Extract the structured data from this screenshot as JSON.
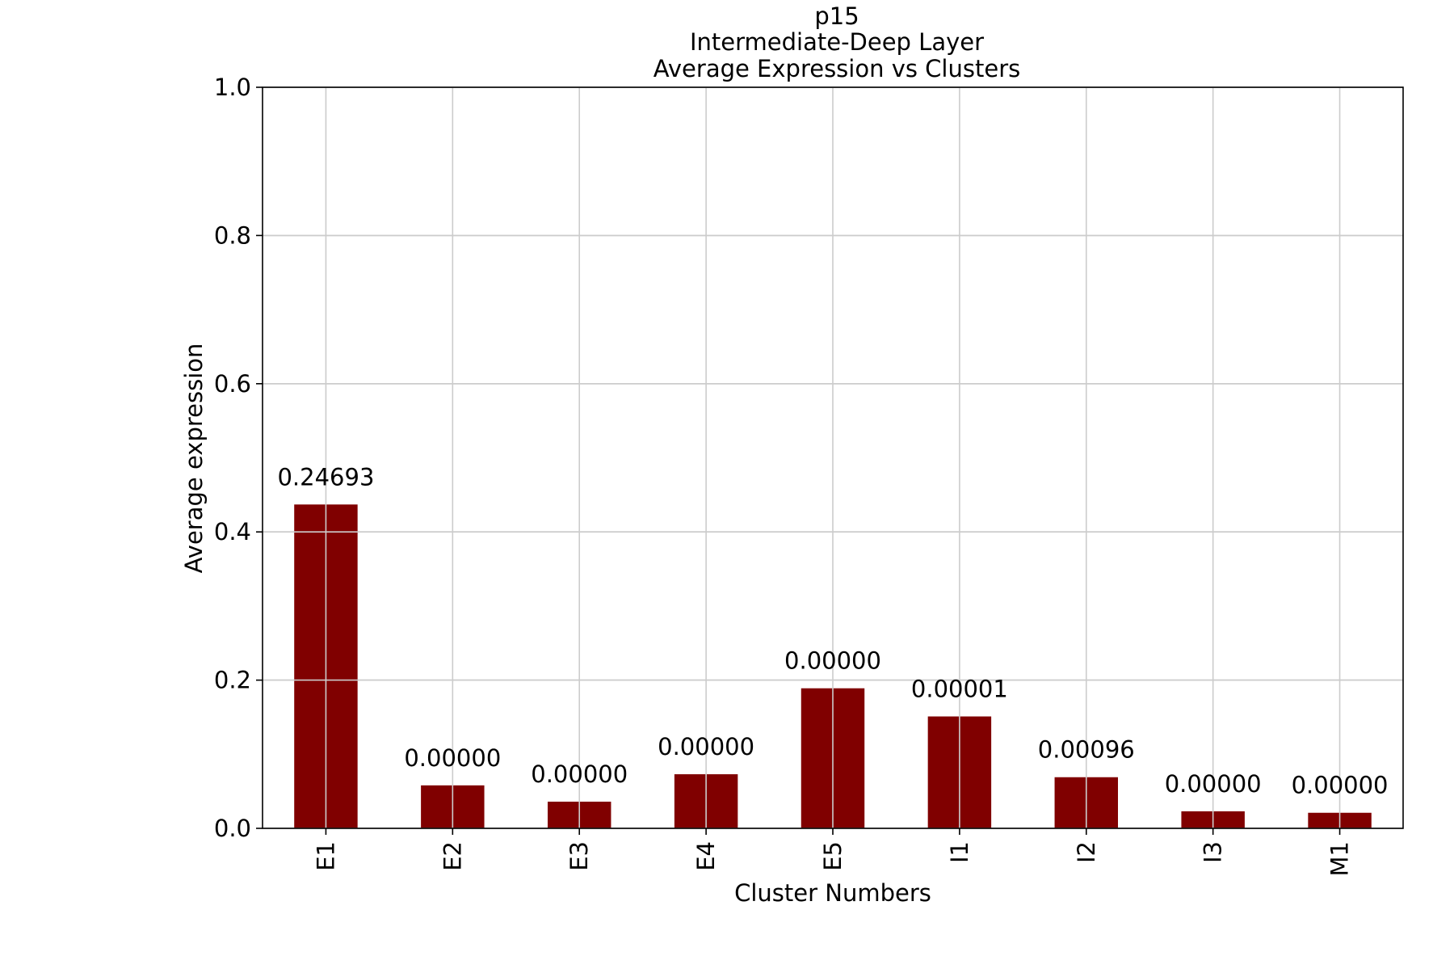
{
  "chart_data": {
    "type": "bar",
    "title_lines": [
      "p15",
      "Intermediate-Deep Layer",
      "Average Expression vs Clusters"
    ],
    "xlabel": "Cluster Numbers",
    "ylabel": "Average expression",
    "categories": [
      "E1",
      "E2",
      "E3",
      "E4",
      "E5",
      "I1",
      "I2",
      "I3",
      "M1"
    ],
    "values": [
      0.437,
      0.058,
      0.036,
      0.073,
      0.189,
      0.151,
      0.069,
      0.023,
      0.021
    ],
    "data_labels": [
      "0.24693",
      "0.00000",
      "0.00000",
      "0.00000",
      "0.00000",
      "0.00001",
      "0.00096",
      "0.00000",
      "0.00000"
    ],
    "ylim": [
      0,
      1.0
    ],
    "yticks": [
      0.0,
      0.2,
      0.4,
      0.6,
      0.8,
      1.0
    ],
    "ytick_labels": [
      "0.0",
      "0.2",
      "0.4",
      "0.6",
      "0.8",
      "1.0"
    ],
    "bar_color": "#800000",
    "grid": true,
    "grid_color": "#cccccc"
  }
}
